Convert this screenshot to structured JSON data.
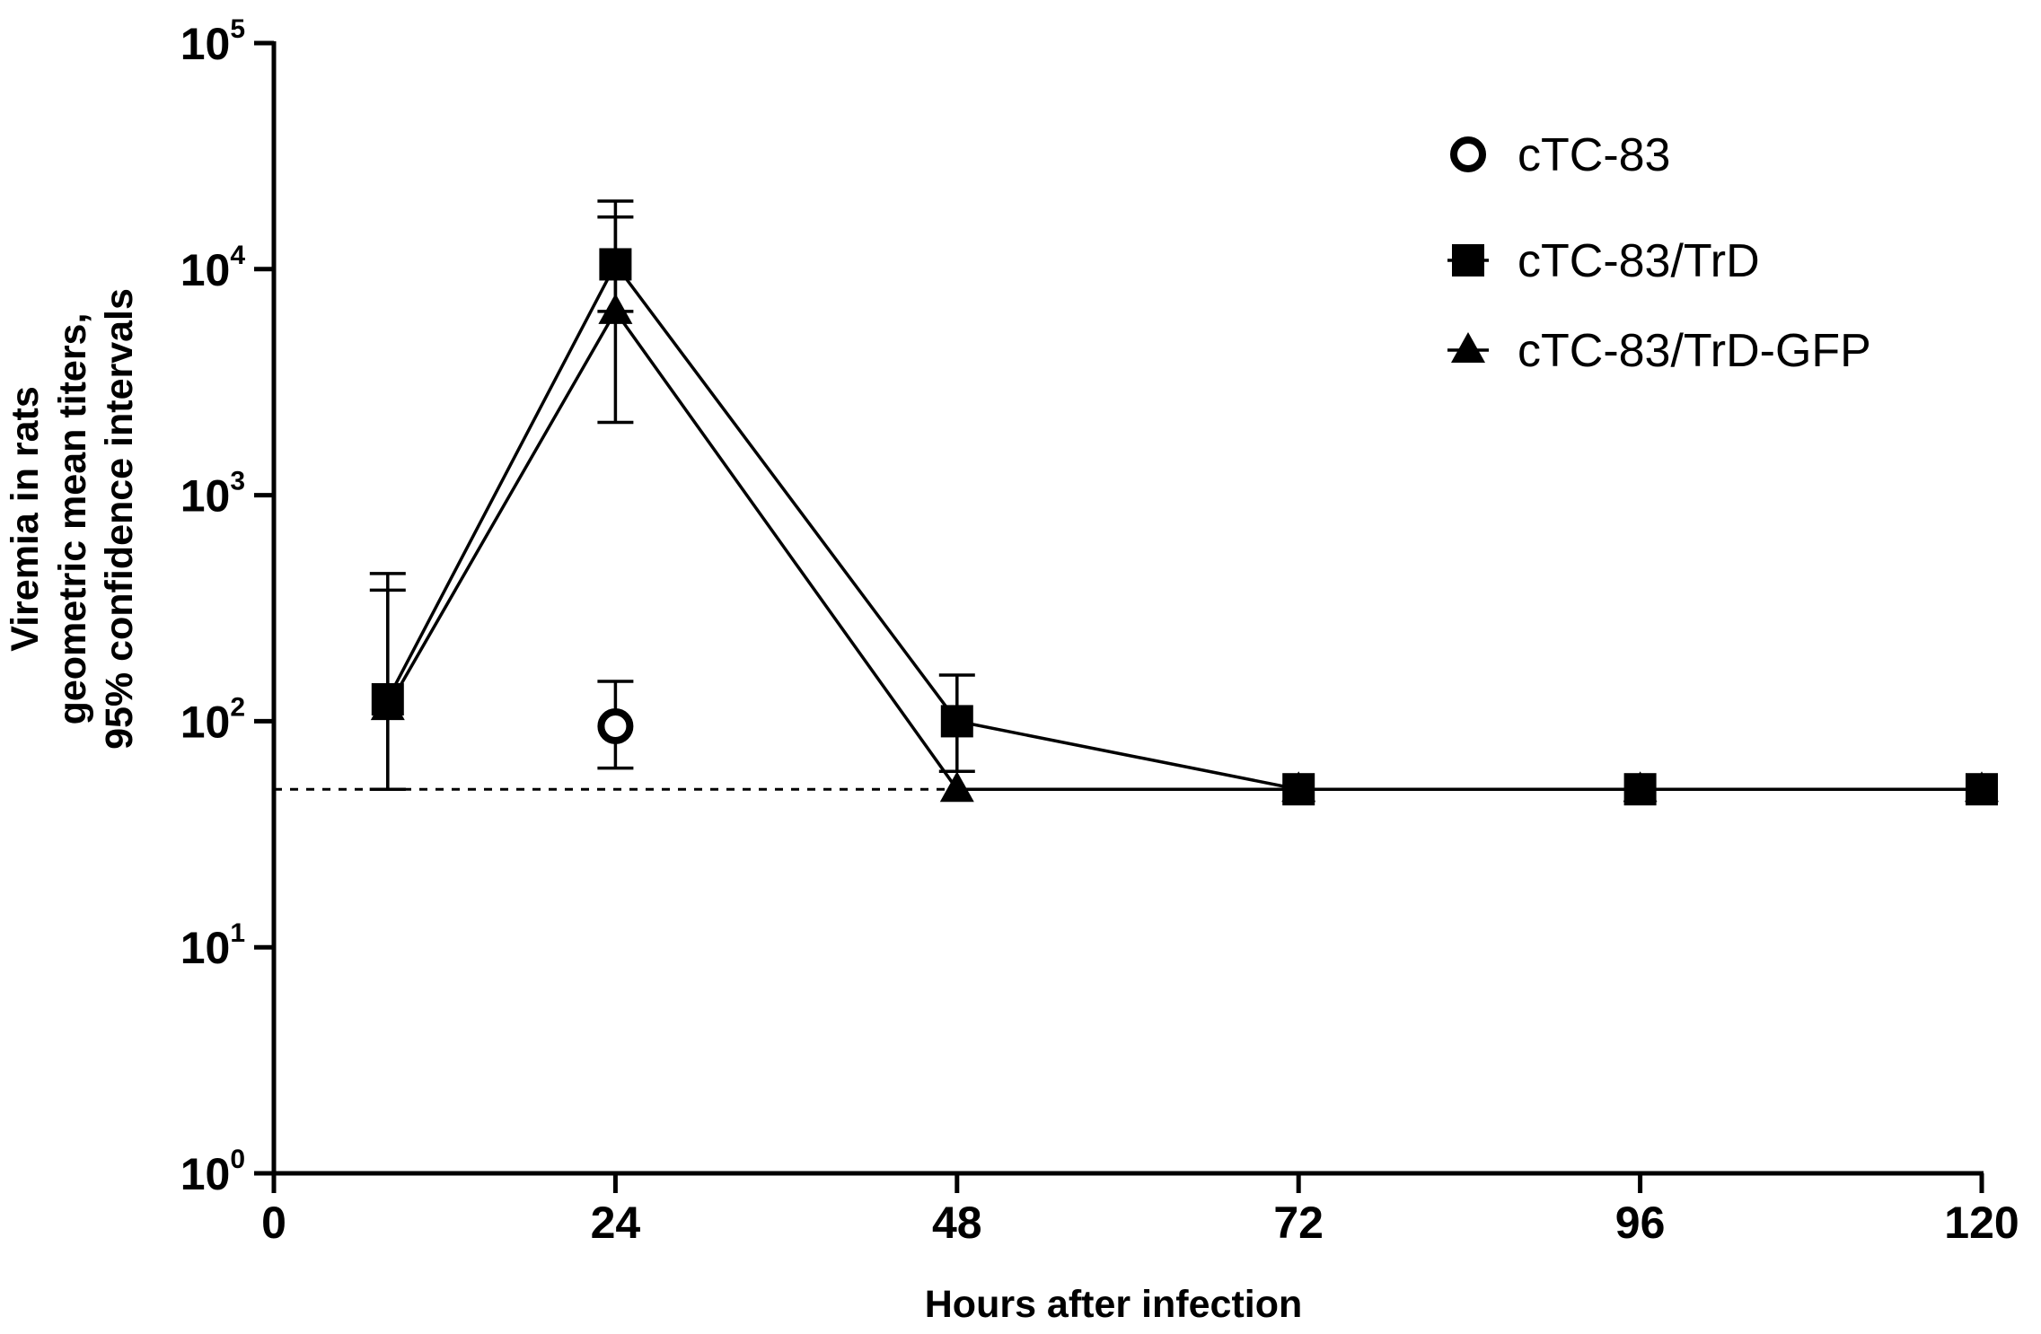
{
  "chart_data": {
    "type": "line",
    "title": "",
    "xlabel": "Hours after infection",
    "ylabel_lines": [
      "Viremia in rats",
      "geometric mean titers,",
      "95% confidence intervals"
    ],
    "xlim": [
      0,
      120
    ],
    "ylim_log10": [
      0,
      5
    ],
    "y_scale": "log10",
    "x_ticks": [
      {
        "value": 0,
        "label": "0"
      },
      {
        "value": 24,
        "label": "24"
      },
      {
        "value": 48,
        "label": "48"
      },
      {
        "value": 72,
        "label": "72"
      },
      {
        "value": 96,
        "label": "96"
      },
      {
        "value": 120,
        "label": "120"
      }
    ],
    "y_ticks": [
      {
        "exp": 0,
        "base": "10",
        "sup": "0"
      },
      {
        "exp": 1,
        "base": "10",
        "sup": "1"
      },
      {
        "exp": 2,
        "base": "10",
        "sup": "2"
      },
      {
        "exp": 3,
        "base": "10",
        "sup": "3"
      },
      {
        "exp": 4,
        "base": "10",
        "sup": "4"
      },
      {
        "exp": 5,
        "base": "10",
        "sup": "5"
      }
    ],
    "detection_limit": 50,
    "legend_position": "top-right",
    "series": [
      {
        "name": "cTC-83",
        "marker": "open-circle",
        "connect": false,
        "points": [
          {
            "x": 24,
            "y": 95,
            "lo": 62,
            "hi": 150
          }
        ]
      },
      {
        "name": "cTC-83/TrD",
        "marker": "square",
        "connect": true,
        "points": [
          {
            "x": 8,
            "y": 125,
            "lo": 50,
            "hi": 380
          },
          {
            "x": 24,
            "y": 10500,
            "lo": 6500,
            "hi": 20000
          },
          {
            "x": 48,
            "y": 100,
            "lo": 60,
            "hi": 160
          },
          {
            "x": 72,
            "y": 50
          },
          {
            "x": 96,
            "y": 50
          },
          {
            "x": 120,
            "y": 50
          }
        ]
      },
      {
        "name": "cTC-83/TrD-GFP",
        "marker": "triangle",
        "connect": true,
        "points": [
          {
            "x": 8,
            "y": 115,
            "lo": 50,
            "hi": 450
          },
          {
            "x": 24,
            "y": 6500,
            "lo": 2100,
            "hi": 17000
          },
          {
            "x": 48,
            "y": 50
          },
          {
            "x": 72,
            "y": 50
          },
          {
            "x": 96,
            "y": 50
          },
          {
            "x": 120,
            "y": 50
          }
        ]
      }
    ]
  }
}
